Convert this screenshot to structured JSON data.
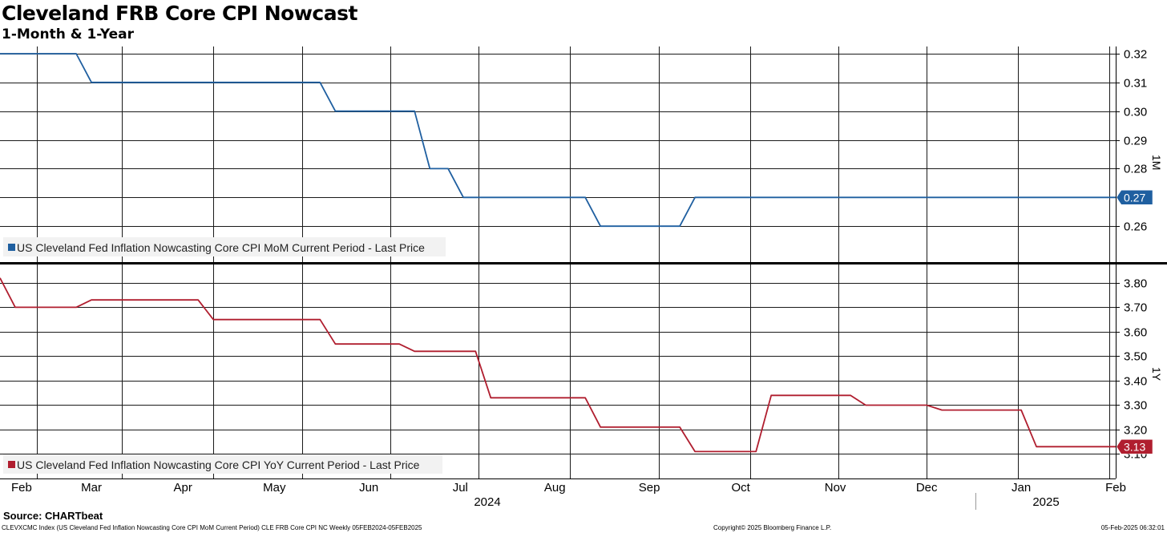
{
  "header": {
    "title": "Cleveland FRB Core CPI Nowcast",
    "subtitle": "1-Month & 1-Year"
  },
  "footer": {
    "source": "Source: CHARTbeat",
    "left": "CLEVXCMC Index (US Cleveland Fed Inflation Nowcasting Core CPI MoM Current Period) CLE FRB Core CPI NC  Weekly 05FEB2024-05FEB2025",
    "middle": "Copyright© 2025 Bloomberg Finance L.P.",
    "right": "05-Feb-2025 06:32:01"
  },
  "colors": {
    "mom": "#1f5fa0",
    "yoy": "#b01e2f"
  },
  "chart_data": [
    {
      "type": "line",
      "panel": "top",
      "axis_label": "1M",
      "legend": "US Cleveland Fed Inflation Nowcasting Core CPI MoM Current Period - Last Price",
      "last_value": "0.27",
      "ylim": [
        0.2475,
        0.3225
      ],
      "yticks": [
        "0.26",
        "0.27",
        "0.28",
        "0.29",
        "0.30",
        "0.31",
        "0.32"
      ],
      "grid": true,
      "x_months": [
        "Feb",
        "Mar",
        "Apr",
        "May",
        "Jun",
        "Jul",
        "Aug",
        "Sep",
        "Oct",
        "Nov",
        "Dec",
        "Jan",
        "Feb"
      ],
      "x_years": [
        "2024",
        "2025"
      ],
      "series": [
        {
          "name": "MoM",
          "x": [
            "2024-02-05",
            "2024-03-01",
            "2024-03-06",
            "2024-04-25",
            "2024-05-01",
            "2024-05-20",
            "2024-05-25",
            "2024-06-01",
            "2024-06-06",
            "2024-06-20",
            "2024-06-25",
            "2024-07-01",
            "2024-07-06",
            "2024-08-15",
            "2024-08-20",
            "2024-09-15",
            "2024-09-20",
            "2025-02-05"
          ],
          "values": [
            0.32,
            0.32,
            0.31,
            0.31,
            0.31,
            0.31,
            0.3,
            0.3,
            0.3,
            0.3,
            0.28,
            0.28,
            0.27,
            0.27,
            0.26,
            0.26,
            0.27,
            0.27
          ]
        }
      ]
    },
    {
      "type": "line",
      "panel": "bottom",
      "axis_label": "1Y",
      "legend": "US Cleveland Fed Inflation Nowcasting Core CPI YoY Current Period - Last Price",
      "last_value": "3.13",
      "ylim": [
        3.0,
        3.875
      ],
      "yticks": [
        "3.10",
        "3.20",
        "3.30",
        "3.40",
        "3.50",
        "3.60",
        "3.70",
        "3.80"
      ],
      "grid": true,
      "series": [
        {
          "name": "YoY",
          "x": [
            "2024-02-05",
            "2024-02-10",
            "2024-03-01",
            "2024-03-06",
            "2024-04-10",
            "2024-04-15",
            "2024-05-20",
            "2024-05-25",
            "2024-06-15",
            "2024-06-20",
            "2024-07-10",
            "2024-07-15",
            "2024-08-15",
            "2024-08-20",
            "2024-09-15",
            "2024-09-20",
            "2024-10-10",
            "2024-10-15",
            "2024-11-10",
            "2024-11-15",
            "2024-12-05",
            "2024-12-10",
            "2025-01-05",
            "2025-01-10",
            "2025-02-05"
          ],
          "values": [
            3.82,
            3.7,
            3.7,
            3.73,
            3.73,
            3.65,
            3.65,
            3.55,
            3.55,
            3.52,
            3.52,
            3.33,
            3.33,
            3.21,
            3.21,
            3.11,
            3.11,
            3.34,
            3.34,
            3.3,
            3.3,
            3.28,
            3.28,
            3.13,
            3.13
          ]
        }
      ]
    }
  ]
}
